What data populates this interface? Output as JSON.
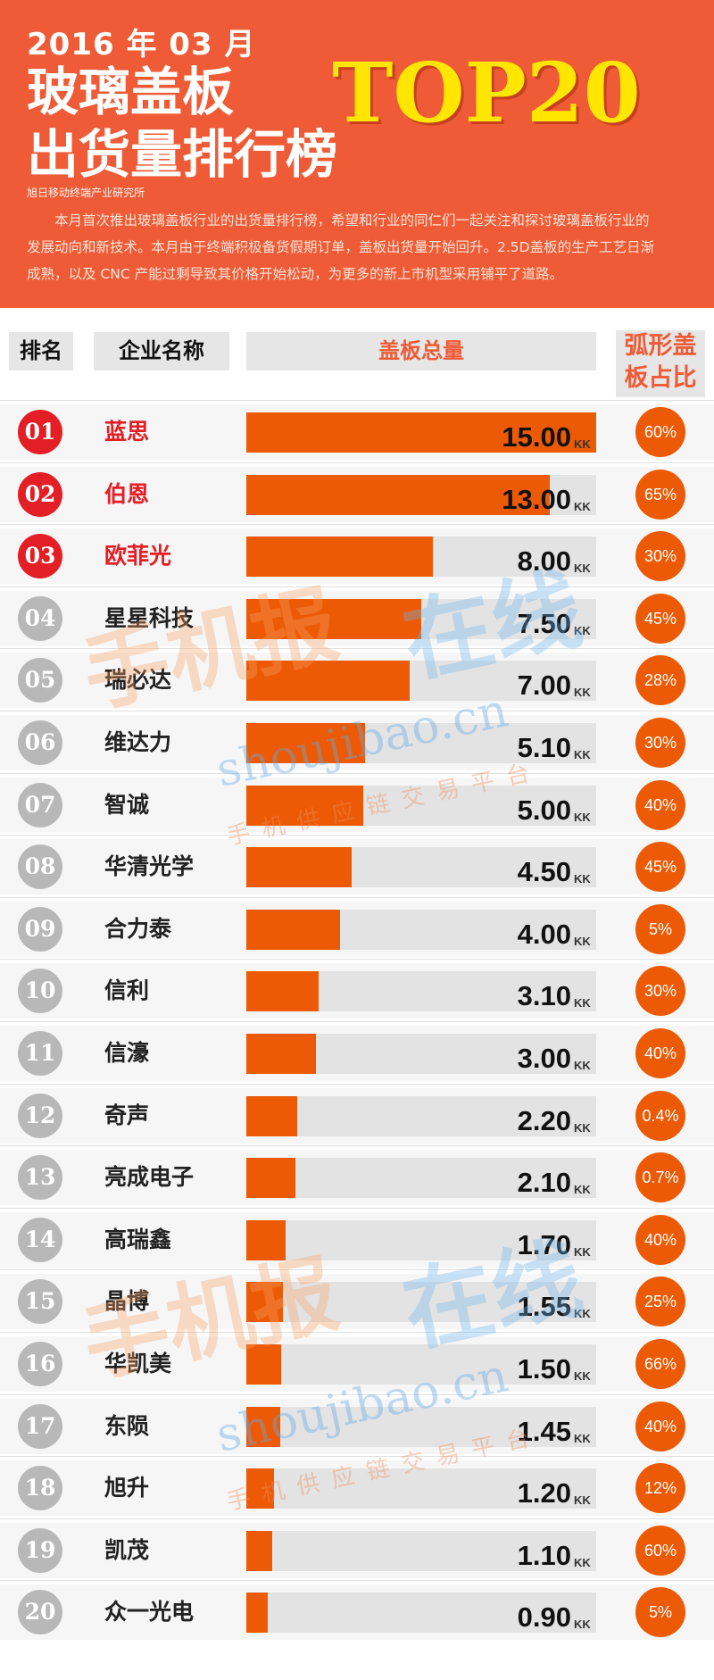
{
  "header": {
    "date": "2016 年 03 月",
    "title_line1": "玻璃盖板",
    "title_line2": "出货量排行榜",
    "badge": "TOP20",
    "source": "旭日移动终端产业研究所",
    "intro": "本月首次推出玻璃盖板行业的出货量排行榜，希望和行业的同仁们一起关注和探讨玻璃盖板行业的发展动向和新技术。本月由于终端积极备货假期订单，盖板出货量开始回升。2.5D盖板的生产工艺日渐成熟，以及 CNC 产能过剩导致其价格开始松动，为更多的新上市机型采用铺平了道路。"
  },
  "columns": {
    "rank": "排名",
    "company": "企业名称",
    "total": "盖板总量",
    "ratio": "弧形盖板占比"
  },
  "watermark": {
    "brand_part1": "手机报",
    "brand_part2": "在线",
    "url": "shoujibao.cn",
    "slogan": "手机供应链交易平台"
  },
  "colors": {
    "header_bg": "#ef5b36",
    "bar": "#ec5a06",
    "top_rank": "#e31e24",
    "rank_other": "#b8b8b8",
    "badge_text": "#ffe600"
  },
  "chart_data": {
    "type": "bar",
    "orientation": "horizontal",
    "unit": "KK",
    "xlim": [
      0,
      15
    ],
    "categories": [
      "蓝思",
      "伯恩",
      "欧菲光",
      "星星科技",
      "瑞必达",
      "维达力",
      "智诚",
      "华清光学",
      "合力泰",
      "信利",
      "信濠",
      "奇声",
      "亮成电子",
      "高瑞鑫",
      "晶博",
      "华凯美",
      "东陨",
      "旭升",
      "凯茂",
      "众一光电"
    ],
    "ranks": [
      "01",
      "02",
      "03",
      "04",
      "05",
      "06",
      "07",
      "08",
      "09",
      "10",
      "11",
      "12",
      "13",
      "14",
      "15",
      "16",
      "17",
      "18",
      "19",
      "20"
    ],
    "values": [
      15.0,
      13.0,
      8.0,
      7.5,
      7.0,
      5.1,
      5.0,
      4.5,
      4.0,
      3.1,
      3.0,
      2.2,
      2.1,
      1.7,
      1.55,
      1.5,
      1.45,
      1.2,
      1.1,
      0.9
    ],
    "value_labels": [
      "15.00",
      "13.00",
      "8.00",
      "7.50",
      "7.00",
      "5.10",
      "5.00",
      "4.50",
      "4.00",
      "3.10",
      "3.00",
      "2.20",
      "2.10",
      "1.70",
      "1.55",
      "1.50",
      "1.45",
      "1.20",
      "1.10",
      "0.90"
    ],
    "curved_ratio": [
      "60%",
      "65%",
      "30%",
      "45%",
      "28%",
      "30%",
      "40%",
      "45%",
      "5%",
      "30%",
      "40%",
      "0.4%",
      "0.7%",
      "40%",
      "25%",
      "66%",
      "40%",
      "12%",
      "60%",
      "5%"
    ]
  }
}
